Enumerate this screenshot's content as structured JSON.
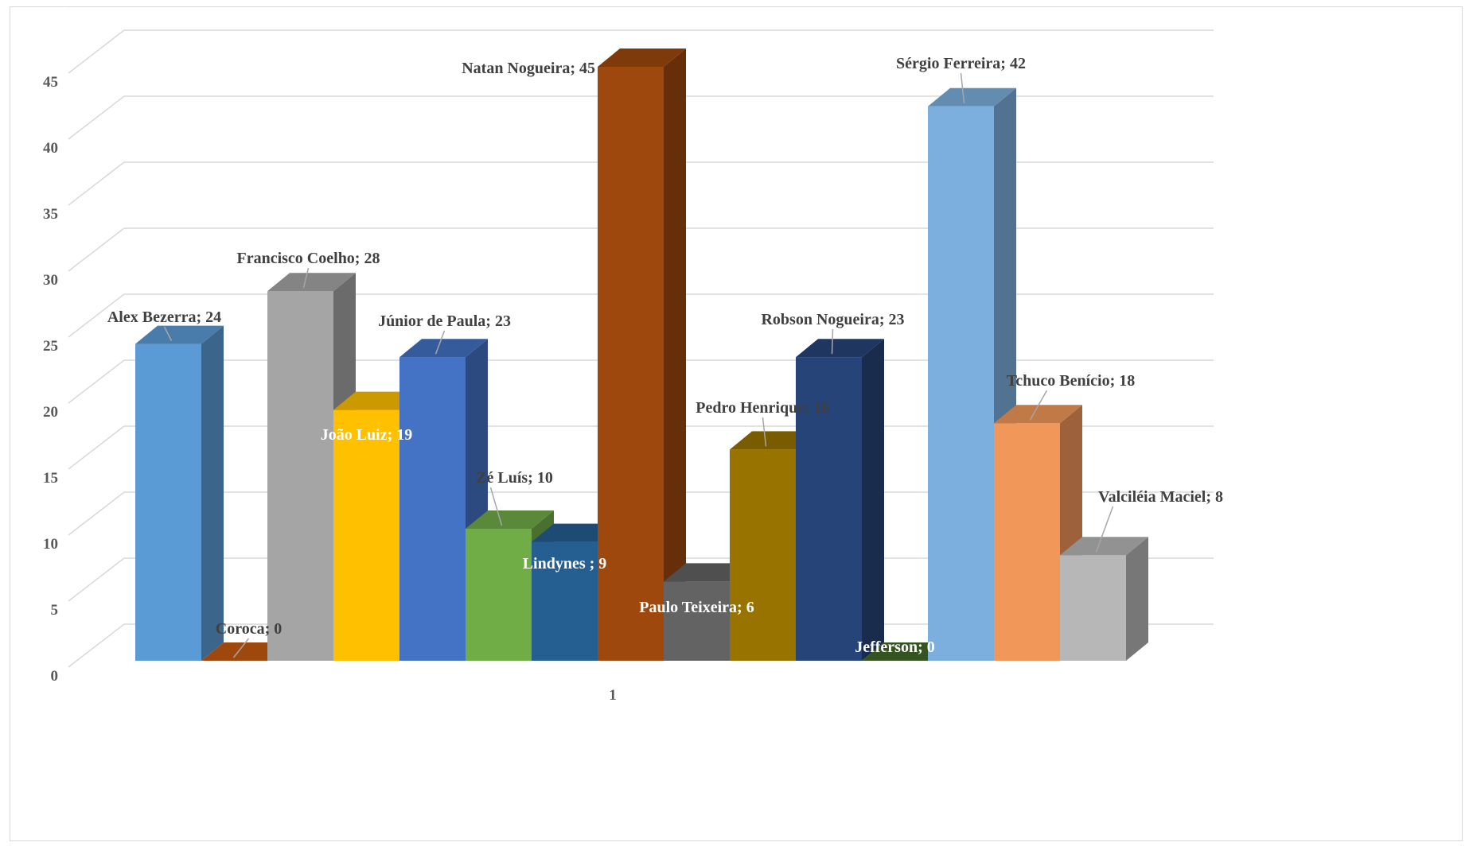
{
  "chart_data": {
    "type": "bar",
    "title": "",
    "xlabel": "",
    "ylabel": "",
    "ylim": [
      0,
      45
    ],
    "y_ticks": [
      "0",
      "5",
      "10",
      "15",
      "20",
      "25",
      "30",
      "35",
      "40",
      "45"
    ],
    "categories": [
      "1"
    ],
    "grid": true,
    "legend": "none",
    "style": "3d-clustered-column",
    "series": [
      {
        "name": "Alex Bezerra",
        "values": [
          24
        ],
        "label": "Alex Bezerra; 24",
        "color": "#5b9bd5"
      },
      {
        "name": "Coroca",
        "values": [
          0
        ],
        "label": "Coroca; 0",
        "color": "#c55a11"
      },
      {
        "name": "Francisco Coelho",
        "values": [
          28
        ],
        "label": "Francisco Coelho; 28",
        "color": "#a5a5a5"
      },
      {
        "name": "João Luiz",
        "values": [
          19
        ],
        "label": "João Luiz; 19",
        "color": "#ffc000"
      },
      {
        "name": "Júnior de Paula",
        "values": [
          23
        ],
        "label": "Júnior de Paula; 23",
        "color": "#4472c4"
      },
      {
        "name": "Zé Luís",
        "values": [
          10
        ],
        "label": "Zé Luís; 10",
        "color": "#70ad47"
      },
      {
        "name": "Lindynes",
        "values": [
          9
        ],
        "label": "Lindynes ; 9",
        "color": "#255e91"
      },
      {
        "name": "Natan Nogueira",
        "values": [
          45
        ],
        "label": "Natan Nogueira; 45",
        "color": "#9e480e"
      },
      {
        "name": "Paulo Teixeira",
        "values": [
          6
        ],
        "label": "Paulo Teixeira; 6",
        "color": "#636363"
      },
      {
        "name": "Pedro Henrique",
        "values": [
          16
        ],
        "label": "Pedro Henrique; 16",
        "color": "#997300"
      },
      {
        "name": "Robson Nogueira",
        "values": [
          23
        ],
        "label": "Robson Nogueira; 23",
        "color": "#264478"
      },
      {
        "name": "Jefferson",
        "values": [
          0
        ],
        "label": "Jefferson; 0",
        "color": "#43682b"
      },
      {
        "name": "Sérgio Ferreira",
        "values": [
          42
        ],
        "label": "Sérgio Ferreira; 42",
        "color": "#7cafdd"
      },
      {
        "name": "Tchuco Benício",
        "values": [
          18
        ],
        "label": "Tchuco Benício; 18",
        "color": "#f1975a"
      },
      {
        "name": "Valciléia Maciel",
        "values": [
          8
        ],
        "label": "Valciléia Maciel; 8",
        "color": "#b7b7b7"
      }
    ]
  }
}
